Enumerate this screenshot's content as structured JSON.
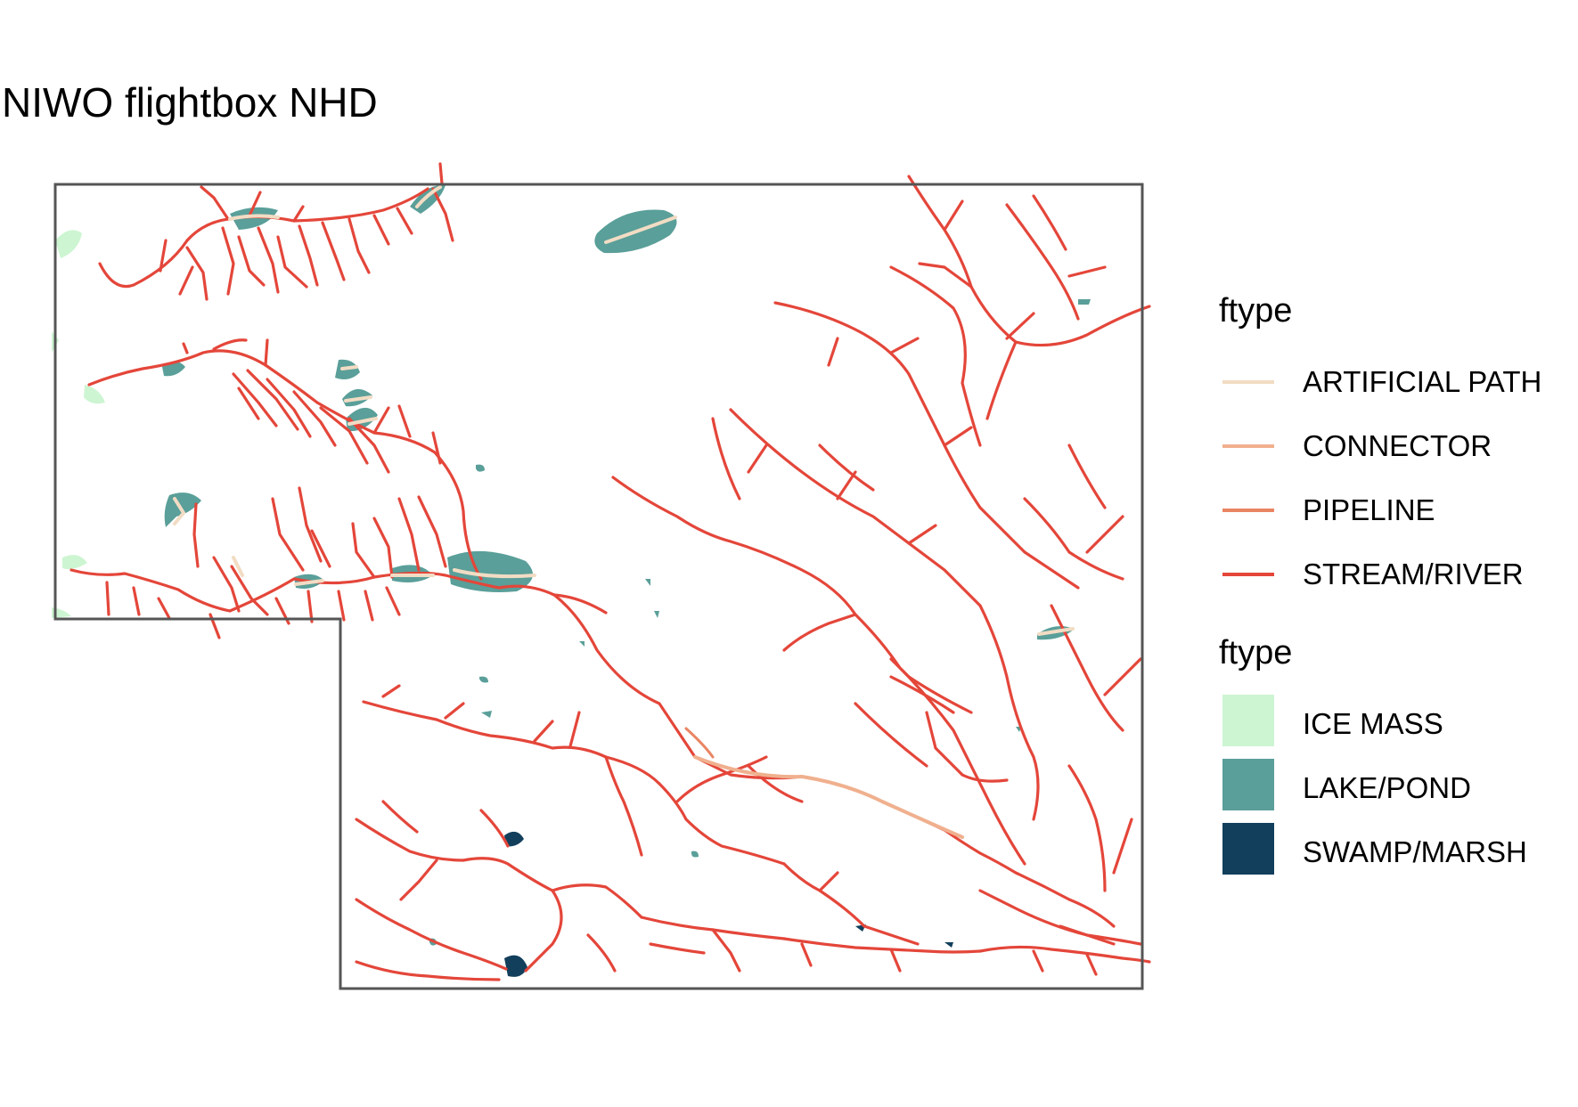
{
  "title": "NIWO flightbox NHD",
  "line_legend": {
    "title": "ftype",
    "items": [
      {
        "label": "ARTIFICIAL PATH",
        "color": "#f2dcc4"
      },
      {
        "label": "CONNECTOR",
        "color": "#f0b08e"
      },
      {
        "label": "PIPELINE",
        "color": "#e98563"
      },
      {
        "label": "STREAM/RIVER",
        "color": "#e4463a"
      }
    ]
  },
  "area_legend": {
    "title": "ftype",
    "items": [
      {
        "label": "ICE MASS",
        "color": "#cdf5d2"
      },
      {
        "label": "LAKE/POND",
        "color": "#5a9f99"
      },
      {
        "label": "SWAMP/MARSH",
        "color": "#123f5c"
      }
    ]
  }
}
